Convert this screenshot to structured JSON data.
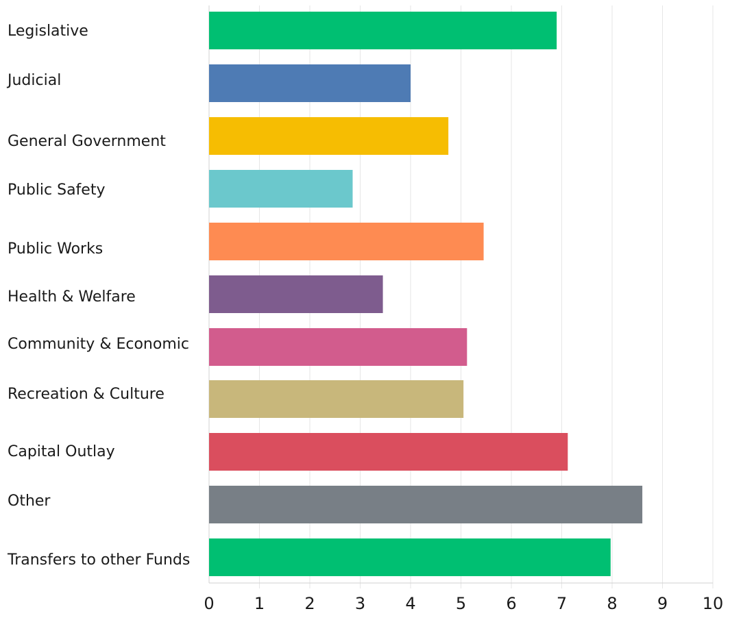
{
  "chart_data": {
    "type": "bar",
    "orientation": "horizontal",
    "categories": [
      "Legislative",
      "Judicial",
      "General Government",
      "Public Safety",
      "Public Works",
      "Health & Welfare",
      "Community & Economic",
      "Recreation & Culture",
      "Capital Outlay",
      "Other",
      "Transfers to other Funds"
    ],
    "values": [
      6.9,
      4.0,
      4.75,
      2.85,
      5.45,
      3.45,
      5.12,
      5.05,
      7.12,
      8.6,
      7.97
    ],
    "colors": [
      "#00bf72",
      "#4e7bb4",
      "#f6bd02",
      "#6bc8cc",
      "#fe8b52",
      "#7e5c8e",
      "#d25c8d",
      "#c8b77b",
      "#da4e5e",
      "#787f86",
      "#00bf72"
    ],
    "xlim": [
      0,
      10
    ],
    "x_ticks": [
      "0",
      "1",
      "2",
      "3",
      "4",
      "5",
      "6",
      "7",
      "8",
      "9",
      "10"
    ],
    "grid": true,
    "legend": "none",
    "title": "",
    "xlabel": "",
    "ylabel": ""
  }
}
